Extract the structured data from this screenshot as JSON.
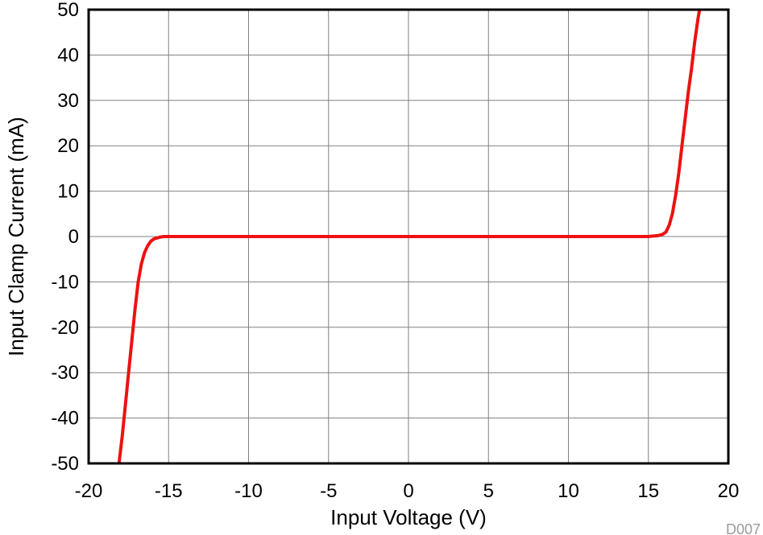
{
  "chart_data": {
    "type": "line",
    "xlabel": "Input Voltage (V)",
    "ylabel": "Input Clamp Current (mA)",
    "figure_code": "D007",
    "xlim": [
      -20,
      20
    ],
    "ylim": [
      -50,
      50
    ],
    "xticks": [
      -20,
      -15,
      -10,
      -5,
      0,
      5,
      10,
      15,
      20
    ],
    "yticks": [
      -50,
      -40,
      -30,
      -20,
      -10,
      0,
      10,
      20,
      30,
      40,
      50
    ],
    "grid": true,
    "line_color": "#ee1111",
    "series": [
      {
        "x": [
          -18.1,
          -17.9,
          -17.7,
          -17.5,
          -17.3,
          -17.1,
          -16.9,
          -16.7,
          -16.5,
          -16.3,
          -16.1,
          -15.9,
          -15.7,
          -15.5,
          -15.3,
          -15.0,
          -14.0,
          -10.0,
          -5.0,
          0.0,
          5.0,
          10.0,
          14.0,
          15.0,
          15.3,
          15.6,
          15.9,
          16.1,
          16.3,
          16.5,
          16.7,
          16.9,
          17.1,
          17.3,
          17.5,
          17.7,
          17.9,
          18.1,
          18.2
        ],
        "y": [
          -50,
          -44,
          -37,
          -30,
          -23,
          -16,
          -10,
          -6,
          -3.5,
          -2,
          -1,
          -0.5,
          -0.3,
          -0.1,
          0,
          0,
          0,
          0,
          0,
          0,
          0,
          0,
          0,
          0,
          0.1,
          0.2,
          0.5,
          1,
          2.5,
          5,
          9,
          14,
          20,
          26,
          32,
          37,
          43,
          48,
          50
        ]
      }
    ]
  }
}
